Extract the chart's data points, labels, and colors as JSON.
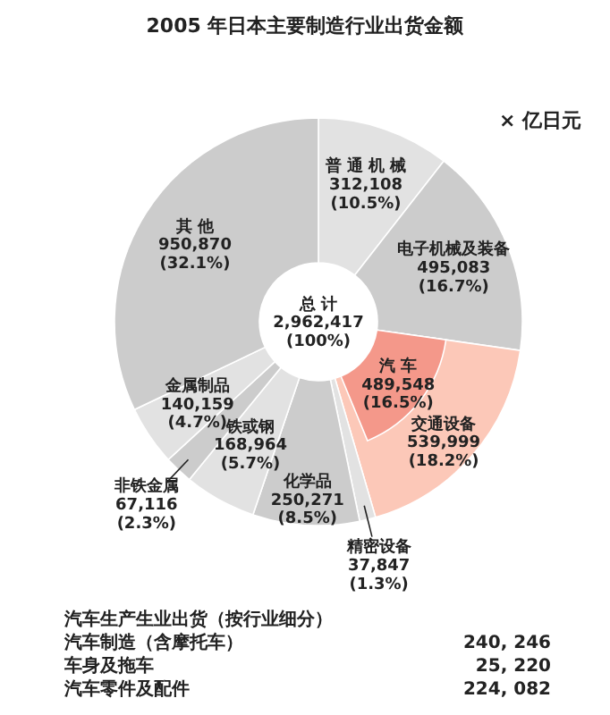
{
  "chart_data": {
    "type": "donut",
    "title": "2005 年日本主要制造行业出货金额",
    "categories": [
      "普 通 机 械",
      "电子机械及装备",
      "交通设备",
      "精密设备",
      "化学品",
      "铁或钢",
      "非铁金属",
      "金属制品",
      "其 他"
    ],
    "series": [
      {
        "values": [
          312108,
          495083,
          539999,
          37847,
          250271,
          168964,
          67116,
          140159,
          950870
        ],
        "colors": [
          "#e2e2e2",
          "#cccccc",
          "#fcc8b8",
          "#e2e2e2",
          "#cccccc",
          "#e2e2e2",
          "#cccccc",
          "#e2e2e2",
          "#cccccc"
        ],
        "value_labels": [
          "312,108\n(10.5%)",
          "495,083\n(16.7%)",
          "539,999\n(18.2%)",
          "37,847\n(1.3%)",
          "250,271\n(8.5%)",
          "168,964\n(5.7%)",
          "67,116\n(2.3%)",
          "140,159\n(4.7%)",
          "950,870\n(32.1%)"
        ]
      },
      {
        "name": "汽 车",
        "color": "#f4988a",
        "values": [
          null,
          null,
          489548,
          null,
          null,
          null,
          null,
          null,
          null
        ],
        "value_labels": [
          null,
          null,
          "489,548\n(16.5%)",
          null,
          null,
          null,
          null,
          null,
          null
        ]
      }
    ],
    "annotations": [
      "× 亿日元",
      "总 计\n2,962,417\n(100%)",
      "汽车生产生业出货（按行业细分）",
      "汽车制造（含摩托车）",
      "240, 246",
      "车身及拖车",
      "25, 220",
      "汽车零件及配件",
      "224, 082"
    ]
  }
}
